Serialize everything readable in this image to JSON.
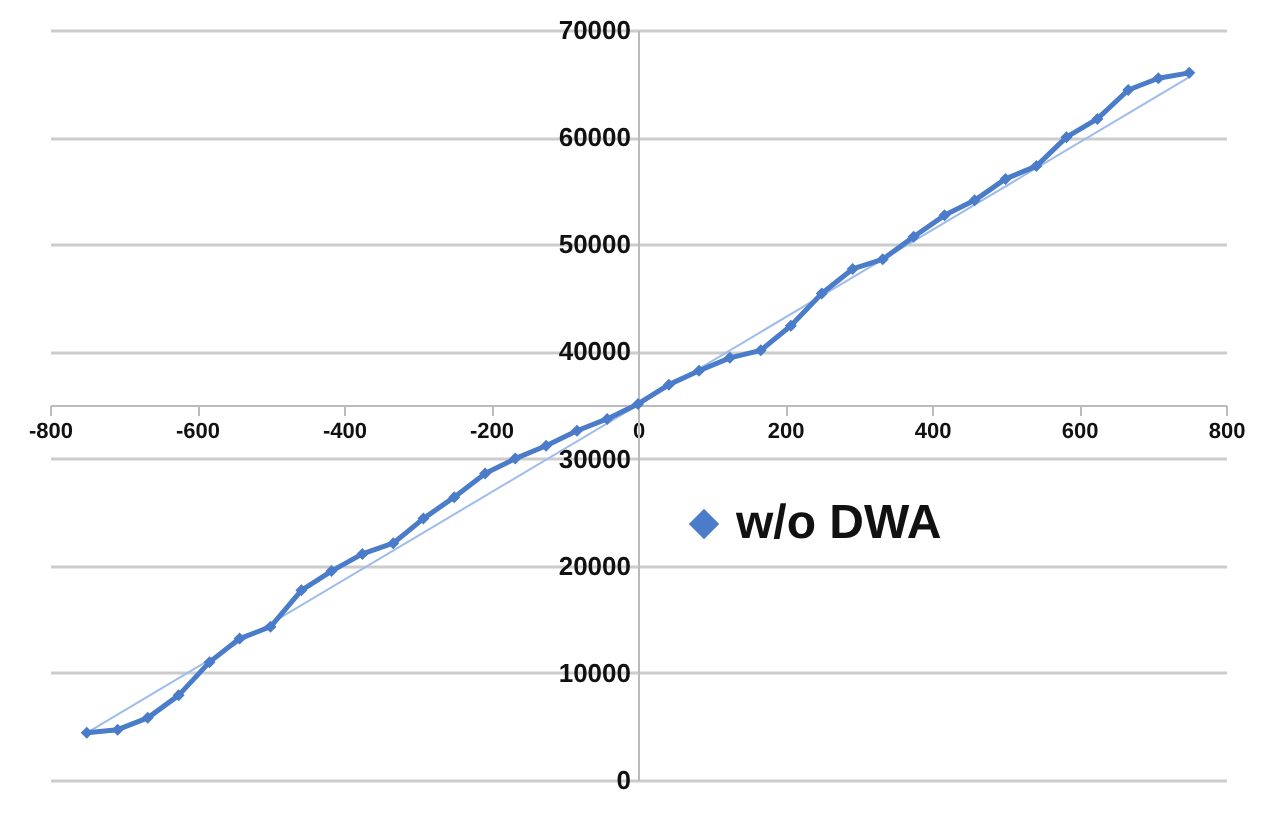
{
  "chart_data": {
    "type": "line",
    "xlim": [
      -800,
      800
    ],
    "xticks": [
      -800,
      -600,
      -400,
      -200,
      0,
      200,
      400,
      600,
      800
    ],
    "ylim": [
      0,
      70000
    ],
    "yticks": [
      0,
      10000,
      20000,
      30000,
      40000,
      50000,
      60000,
      70000
    ],
    "grid": "y",
    "legend": "right",
    "marker": "diamond",
    "series": [
      {
        "name": "w/o DWA",
        "color": "#4a7cc9",
        "x": [
          -750,
          -708,
          -667,
          -625,
          -583,
          -542,
          -500,
          -458,
          -417,
          -375,
          -333,
          -292,
          -250,
          -208,
          -167,
          -125,
          -83,
          -42,
          0,
          42,
          83,
          125,
          167,
          208,
          250,
          292,
          333,
          375,
          417,
          458,
          500,
          542,
          583,
          625,
          667,
          708,
          750
        ],
        "values": [
          4400,
          4700,
          5800,
          7900,
          11000,
          13200,
          14300,
          17700,
          19500,
          21100,
          22100,
          24400,
          26400,
          28600,
          30000,
          31200,
          32600,
          33700,
          35100,
          36900,
          38200,
          39400,
          40100,
          42400,
          45400,
          47700,
          48600,
          50700,
          52700,
          54100,
          56100,
          57300,
          60000,
          61700,
          64400,
          65500,
          66000
        ]
      },
      {
        "type": "line",
        "color": "#9dbcec",
        "marker": "none",
        "x": [
          -750,
          750
        ],
        "values": [
          4400,
          65600
        ]
      }
    ]
  }
}
